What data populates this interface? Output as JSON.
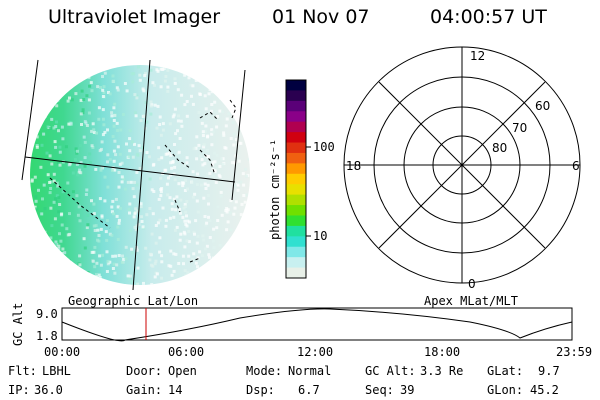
{
  "header": {
    "instrument": "Ultraviolet Imager",
    "date": "01 Nov 07",
    "time": "04:00:57 UT"
  },
  "colorbar": {
    "label": "photon cm⁻²s⁻¹",
    "ticks": [
      "100",
      "10"
    ],
    "colors": [
      "#000040",
      "#2a0050",
      "#5a0078",
      "#8a0088",
      "#b00050",
      "#d00010",
      "#e03010",
      "#f06010",
      "#ff9900",
      "#ffcc00",
      "#e8e000",
      "#b0e000",
      "#70e000",
      "#30e030",
      "#20e0a0",
      "#30e0d0",
      "#80e8e8",
      "#c8f0f0",
      "#e8f0e8"
    ]
  },
  "polar": {
    "mlt_labels": {
      "top": "12",
      "left": "18",
      "right": "6",
      "bottom": "0"
    },
    "lat_labels": [
      "60",
      "70",
      "80"
    ]
  },
  "timeline": {
    "left_title": "Geographic Lat/Lon",
    "right_title": "Apex MLat/MLT",
    "axis_label": "GC Alt",
    "y_ticks": [
      "9.0",
      "1.8"
    ],
    "x_ticks": [
      "00:00",
      "06:00",
      "12:00",
      "18:00",
      "23:59"
    ],
    "marker_color": "#cc0000"
  },
  "status": {
    "filter_label": "Flt:",
    "filter_value": "LBHL",
    "door_label": "Door:",
    "door_value": "Open",
    "mode_label": "Mode:",
    "mode_value": "Normal",
    "gcalt_label": "GC Alt:",
    "gcalt_value": "3.3 Re",
    "glat_label": "GLat:",
    "glat_value": "9.7",
    "ip_label": "IP:",
    "ip_value": "36.0",
    "gain_label": "Gain:",
    "gain_value": "14",
    "dsp_label": "Dsp:",
    "dsp_value": "6.7",
    "seq_label": "Seq:",
    "seq_value": "39",
    "glon_label": "GLon:",
    "glon_value": "45.2"
  }
}
